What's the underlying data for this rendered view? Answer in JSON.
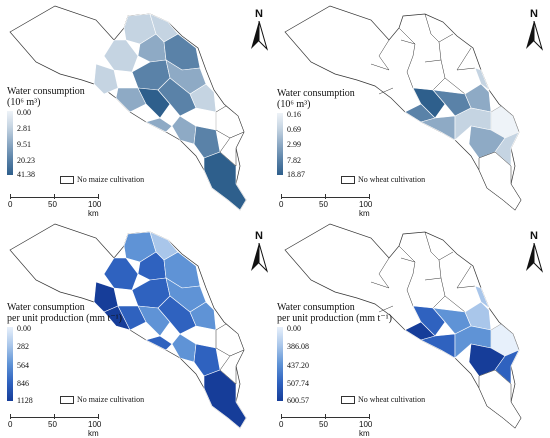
{
  "panels": [
    {
      "id": "maize-water",
      "legend": {
        "title_line1": "Water consumption",
        "title_line2": "(10⁶ m³)",
        "ticks": [
          "0.00",
          "2.81",
          "9.51",
          "20.23",
          "41.38"
        ],
        "colors": [
          "#eef3f8",
          "#c5d4e2",
          "#8eaac5",
          "#5a82a8",
          "#2e5f8c"
        ]
      },
      "no_cultivation": "No maize cultivation",
      "scale": {
        "labels": [
          "0",
          "50",
          "100 km"
        ]
      },
      "north": "N"
    },
    {
      "id": "wheat-water",
      "legend": {
        "title_line1": "Water consumption",
        "title_line2": "(10⁶ m³)",
        "ticks": [
          "0.16",
          "0.69",
          "2.99",
          "7.82",
          "18.87"
        ],
        "colors": [
          "#eef3f8",
          "#c5d4e2",
          "#8eaac5",
          "#5a82a8",
          "#2e5f8c"
        ]
      },
      "no_cultivation": "No wheat cultivation",
      "scale": {
        "labels": [
          "0",
          "50",
          "100 km"
        ]
      },
      "north": "N"
    },
    {
      "id": "maize-per-unit",
      "legend": {
        "title_line1": "Water consumption",
        "title_line2": "per unit production (mm t⁻¹)",
        "ticks": [
          "0.00",
          "282",
          "564",
          "846",
          "1128"
        ],
        "colors": [
          "#e7f0fb",
          "#a9c6ea",
          "#5f93d6",
          "#2f62bf",
          "#163d99"
        ]
      },
      "no_cultivation": "No maize cultivation",
      "scale": {
        "labels": [
          "0",
          "50",
          "100 km"
        ]
      },
      "north": "N"
    },
    {
      "id": "wheat-per-unit",
      "legend": {
        "title_line1": "Water consumption",
        "title_line2": "per unit production (mm t⁻¹)",
        "ticks": [
          "0.00",
          "386.08",
          "437.20",
          "507.74",
          "600.57"
        ],
        "colors": [
          "#e7f0fb",
          "#a9c6ea",
          "#5f93d6",
          "#2f62bf",
          "#163d99"
        ]
      },
      "no_cultivation": "No wheat cultivation",
      "scale": {
        "labels": [
          "0",
          "50",
          "100 km"
        ]
      },
      "north": "N"
    }
  ]
}
